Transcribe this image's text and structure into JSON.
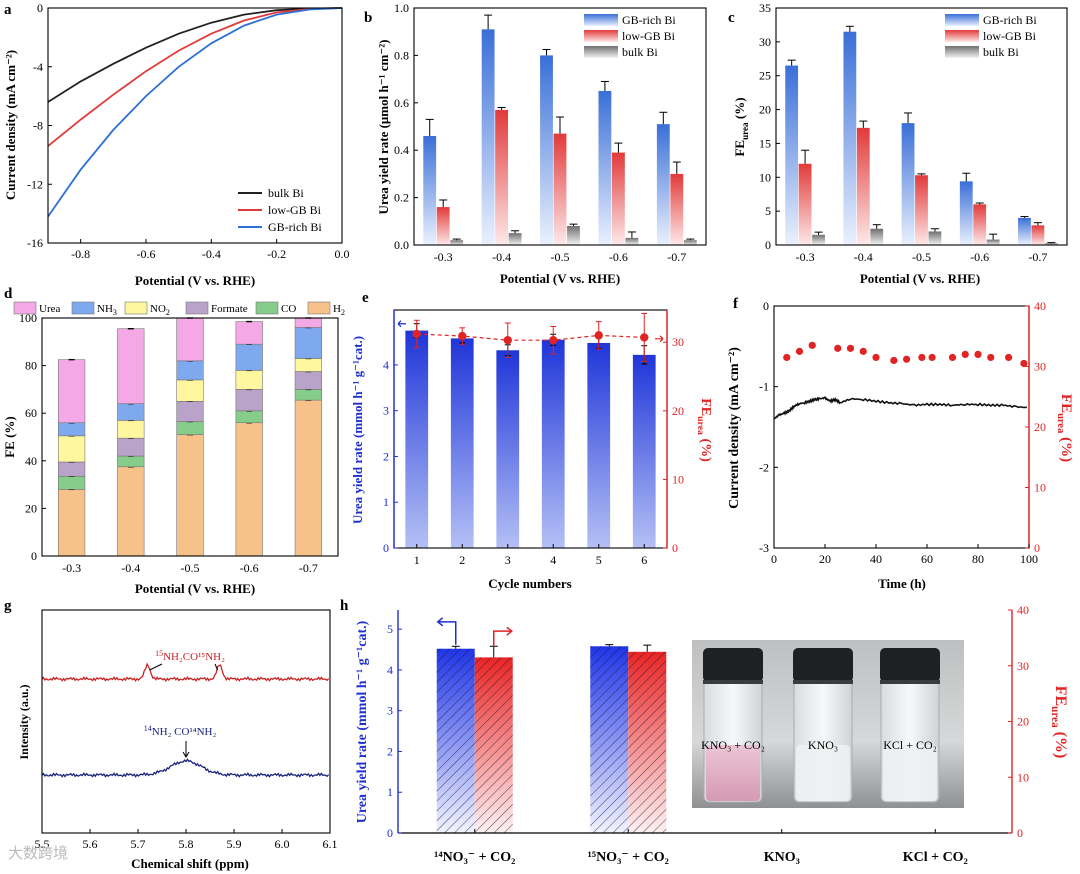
{
  "watermark": "大数跨境",
  "colors": {
    "blue": "#3a6fd8",
    "red": "#e23a3a",
    "gray": "#8a8a8a",
    "navy": "#1a237e",
    "black": "#222",
    "pink": "#f4a9e6",
    "lightblue": "#7ea9ee",
    "yellow": "#fff6a0",
    "mauve": "#b9a3c8",
    "green": "#86cc8a",
    "orange": "#f6c28a"
  },
  "panels": {
    "a": "a",
    "b": "b",
    "c": "c",
    "d": "d",
    "e": "e",
    "f": "f",
    "g": "g",
    "h": "h"
  },
  "a": {
    "ylabel": "Current density (mA cm⁻²)",
    "xlabel": "Potential (V vs. RHE)",
    "xlim": [
      -0.9,
      0.0
    ],
    "ylim": [
      -16,
      0
    ],
    "xticks": [
      "-0.8",
      "-0.6",
      "-0.4",
      "-0.2",
      "0.0"
    ],
    "xtickvals": [
      -0.8,
      -0.6,
      -0.4,
      -0.2,
      0.0
    ],
    "yticks": [
      "0",
      "-4",
      "-8",
      "-12",
      "-16"
    ],
    "ytickvals": [
      0,
      -4,
      -8,
      -12,
      -16
    ],
    "series": [
      {
        "name": "bulk Bi",
        "color": "#222",
        "points": [
          [
            -0.9,
            -6.4
          ],
          [
            -0.8,
            -5.0
          ],
          [
            -0.7,
            -3.8
          ],
          [
            -0.6,
            -2.7
          ],
          [
            -0.5,
            -1.75
          ],
          [
            -0.4,
            -1.0
          ],
          [
            -0.3,
            -0.45
          ],
          [
            -0.2,
            -0.15
          ],
          [
            -0.1,
            -0.04
          ],
          [
            0.0,
            0.0
          ]
        ]
      },
      {
        "name": "low-GB Bi",
        "color": "#e23a3a",
        "points": [
          [
            -0.9,
            -9.4
          ],
          [
            -0.8,
            -7.6
          ],
          [
            -0.7,
            -5.9
          ],
          [
            -0.6,
            -4.3
          ],
          [
            -0.5,
            -2.9
          ],
          [
            -0.4,
            -1.75
          ],
          [
            -0.3,
            -0.85
          ],
          [
            -0.2,
            -0.3
          ],
          [
            -0.1,
            -0.07
          ],
          [
            0.0,
            0.0
          ]
        ]
      },
      {
        "name": "GB-rich Bi",
        "color": "#2d6fd6",
        "points": [
          [
            -0.9,
            -14.2
          ],
          [
            -0.8,
            -11.0
          ],
          [
            -0.7,
            -8.3
          ],
          [
            -0.6,
            -6.0
          ],
          [
            -0.5,
            -4.0
          ],
          [
            -0.4,
            -2.4
          ],
          [
            -0.3,
            -1.2
          ],
          [
            -0.2,
            -0.45
          ],
          [
            -0.1,
            -0.1
          ],
          [
            0.0,
            0.0
          ]
        ]
      }
    ]
  },
  "b": {
    "ylabel": "Urea yield rate (μmol h⁻¹ cm⁻²)",
    "xlabel": "Potential (V vs. RHE)",
    "ylim": [
      0,
      1.0
    ],
    "yticks": [
      "0.0",
      "0.2",
      "0.4",
      "0.6",
      "0.8",
      "1.0"
    ],
    "ytickvals": [
      0,
      0.2,
      0.4,
      0.6,
      0.8,
      1.0
    ],
    "categories": [
      "-0.3",
      "-0.4",
      "-0.5",
      "-0.6",
      "-0.7"
    ],
    "series": [
      {
        "name": "GB-rich Bi",
        "values": [
          0.46,
          0.91,
          0.8,
          0.65,
          0.51
        ],
        "errors": [
          0.07,
          0.06,
          0.025,
          0.04,
          0.05
        ]
      },
      {
        "name": "low-GB Bi",
        "values": [
          0.16,
          0.57,
          0.47,
          0.39,
          0.3
        ],
        "errors": [
          0.03,
          0.01,
          0.07,
          0.04,
          0.05
        ]
      },
      {
        "name": "bulk Bi",
        "values": [
          0.02,
          0.05,
          0.08,
          0.03,
          0.02
        ],
        "errors": [
          0.005,
          0.01,
          0.008,
          0.025,
          0.005
        ]
      }
    ]
  },
  "c": {
    "ylabel": "FE",
    "ylabel_sub": "urea",
    "ylabel_unit": " (%)",
    "xlabel": "Potential (V vs. RHE)",
    "ylim": [
      0,
      35
    ],
    "yticks": [
      "0",
      "5",
      "10",
      "15",
      "20",
      "25",
      "30",
      "35"
    ],
    "ytickvals": [
      0,
      5,
      10,
      15,
      20,
      25,
      30,
      35
    ],
    "categories": [
      "-0.3",
      "-0.4",
      "-0.5",
      "-0.6",
      "-0.7"
    ],
    "series": [
      {
        "name": "GB-rich Bi",
        "values": [
          26.5,
          31.5,
          18.0,
          9.4,
          4.0
        ],
        "errors": [
          0.8,
          0.8,
          1.5,
          1.2,
          0.2
        ]
      },
      {
        "name": "low-GB Bi",
        "values": [
          12.0,
          17.3,
          10.3,
          6.0,
          2.9
        ],
        "errors": [
          2.0,
          1.0,
          0.2,
          0.2,
          0.4
        ]
      },
      {
        "name": "bulk Bi",
        "values": [
          1.5,
          2.4,
          2.0,
          0.8,
          0.25
        ],
        "errors": [
          0.4,
          0.6,
          0.4,
          0.8,
          0.1
        ]
      }
    ]
  },
  "d": {
    "ylabel": "FE (%)",
    "xlabel": "Potential (V vs. RHE)",
    "ylim": [
      0,
      100
    ],
    "yticks": [
      "0",
      "20",
      "40",
      "60",
      "80",
      "100"
    ],
    "ytickvals": [
      0,
      20,
      40,
      60,
      80,
      100
    ],
    "categories": [
      "-0.3",
      "-0.4",
      "-0.5",
      "-0.6",
      "-0.7"
    ],
    "legend": [
      {
        "label": "Urea",
        "color": "#f4a9e6"
      },
      {
        "label": "NH",
        "sub": "3",
        "color": "#7ea9ee"
      },
      {
        "label": "NO",
        "sub": "2",
        "color": "#fff6a0"
      },
      {
        "label": "Formate",
        "color": "#b9a3c8"
      },
      {
        "label": "CO",
        "color": "#86cc8a"
      },
      {
        "label": "H",
        "sub": "2",
        "color": "#f6c28a"
      }
    ],
    "stacks": {
      "H2": [
        28,
        37.5,
        51,
        56,
        65.5
      ],
      "CO": [
        5.5,
        4.5,
        5.5,
        5,
        4.5
      ],
      "Formate": [
        6,
        7.5,
        8.5,
        9,
        7.5
      ],
      "NO2": [
        11,
        7.5,
        9,
        8,
        5.5
      ],
      "NH3": [
        5.5,
        7,
        8,
        11,
        13
      ],
      "Urea": [
        26.5,
        31.5,
        18,
        9.5,
        4
      ]
    },
    "order": [
      "H2",
      "CO",
      "Formate",
      "NO2",
      "NH3",
      "Urea"
    ],
    "stack_colors": {
      "H2": "#f6c28a",
      "CO": "#86cc8a",
      "Formate": "#b9a3c8",
      "NO2": "#fff6a0",
      "NH3": "#7ea9ee",
      "Urea": "#f4a9e6"
    }
  },
  "e": {
    "ylabel": "Urea yield rate (mmol h⁻¹ g⁻¹cat.)",
    "y2label": "FE",
    "y2label_sub": "urea",
    "y2label_unit": " (%)",
    "xlabel": "Cycle numbers",
    "categories": [
      "1",
      "2",
      "3",
      "4",
      "5",
      "6"
    ],
    "ylim": [
      0,
      5.2
    ],
    "yticks": [
      "0",
      "1",
      "2",
      "3",
      "4"
    ],
    "ytickvals": [
      0,
      1,
      2,
      3,
      4
    ],
    "y2lim": [
      0,
      34.7
    ],
    "y2ticks": [
      "0",
      "10",
      "20",
      "30"
    ],
    "y2tickvals": [
      0,
      10,
      20,
      30
    ],
    "values": [
      4.75,
      4.58,
      4.32,
      4.55,
      4.48,
      4.22
    ],
    "errors": [
      0.15,
      0.1,
      0.12,
      0.12,
      0.12,
      0.2
    ],
    "fe": [
      31.2,
      30.9,
      30.3,
      30.3,
      31.0,
      30.7
    ],
    "fe_errors": [
      2.0,
      1.2,
      2.5,
      2.0,
      2.0,
      3.5
    ]
  },
  "f": {
    "ylabel": "Current density (mA cm⁻²)",
    "y2label": "FE",
    "y2label_sub": "urea",
    "y2label_unit": " (%)",
    "xlabel": "Time (h)",
    "xlim": [
      0,
      100
    ],
    "xticks": [
      "0",
      "20",
      "40",
      "60",
      "80",
      "100"
    ],
    "xtickvals": [
      0,
      20,
      40,
      60,
      80,
      100
    ],
    "ylim": [
      -3,
      0
    ],
    "yticks": [
      "0",
      "-1",
      "-2",
      "-3"
    ],
    "ytickvals": [
      0,
      -1,
      -2,
      -3
    ],
    "y2lim": [
      0,
      40
    ],
    "y2ticks": [
      "0",
      "10",
      "20",
      "30",
      "40"
    ],
    "y2tickvals": [
      0,
      10,
      20,
      30,
      40
    ],
    "current": [
      [
        0,
        -1.4
      ],
      [
        2,
        -1.35
      ],
      [
        4,
        -1.33
      ],
      [
        6,
        -1.3
      ],
      [
        8,
        -1.24
      ],
      [
        10,
        -1.21
      ],
      [
        12,
        -1.2
      ],
      [
        14,
        -1.18
      ],
      [
        16,
        -1.16
      ],
      [
        18,
        -1.15
      ],
      [
        20,
        -1.14
      ],
      [
        22,
        -1.18
      ],
      [
        24,
        -1.16
      ],
      [
        26,
        -1.2
      ],
      [
        30,
        -1.15
      ],
      [
        35,
        -1.16
      ],
      [
        40,
        -1.18
      ],
      [
        45,
        -1.2
      ],
      [
        50,
        -1.21
      ],
      [
        55,
        -1.23
      ],
      [
        60,
        -1.22
      ],
      [
        65,
        -1.22
      ],
      [
        70,
        -1.23
      ],
      [
        75,
        -1.22
      ],
      [
        80,
        -1.22
      ],
      [
        85,
        -1.23
      ],
      [
        90,
        -1.23
      ],
      [
        95,
        -1.25
      ],
      [
        100,
        -1.26
      ]
    ],
    "fe": [
      [
        5,
        31.5
      ],
      [
        10,
        32.5
      ],
      [
        15,
        33.5
      ],
      [
        25,
        33
      ],
      [
        30,
        33
      ],
      [
        35,
        32.5
      ],
      [
        40,
        31.5
      ],
      [
        47,
        31
      ],
      [
        52,
        31.2
      ],
      [
        58,
        31.5
      ],
      [
        62,
        31.5
      ],
      [
        70,
        31.5
      ],
      [
        75,
        32
      ],
      [
        80,
        32
      ],
      [
        85,
        31.5
      ],
      [
        92,
        31.5
      ],
      [
        98,
        30.5
      ]
    ]
  },
  "g": {
    "ylabel": "Intensity (a.u.)",
    "xlabel": "Chemical shift (ppm)",
    "xlim": [
      6.1,
      5.5
    ],
    "xticks": [
      "5.5",
      "5.6",
      "5.7",
      "5.8",
      "5.9",
      "6.0",
      "6.1"
    ],
    "xtickvals": [
      5.5,
      5.6,
      5.7,
      5.8,
      5.9,
      6.0,
      6.1
    ],
    "top_label": "NH₂CO¹⁵NH₂",
    "top_label_pre": "15",
    "bottom_label": "NH₂ CO¹⁴NH₂",
    "bottom_label_pre": "14",
    "top_peaks": [
      5.72,
      5.87
    ],
    "bottom_peak": 5.8
  },
  "h": {
    "ylabel": "Urea yield rate (mmol h⁻¹ g⁻¹cat.)",
    "y2label": "FE",
    "y2label_sub": "urea",
    "y2label_unit": " (%)",
    "ylim": [
      0,
      5.47
    ],
    "yticks": [
      "0",
      "1",
      "2",
      "3",
      "4",
      "5"
    ],
    "ytickvals": [
      0,
      1,
      2,
      3,
      4,
      5
    ],
    "y2lim": [
      0,
      40
    ],
    "y2ticks": [
      "0",
      "10",
      "20",
      "30",
      "40"
    ],
    "y2tickvals": [
      0,
      10,
      20,
      30,
      40
    ],
    "categories": [
      "¹⁴NO₃⁻ + CO₂",
      "¹⁵NO₃⁻ + CO₂",
      "KNO₃",
      "KCl + CO₂"
    ],
    "yield": [
      4.52,
      4.58,
      0,
      0
    ],
    "yield_err": [
      0.06,
      0.04,
      0,
      0
    ],
    "fe": [
      31.5,
      32.5,
      0,
      0
    ],
    "fe_err": [
      2.0,
      1.2,
      0,
      0
    ],
    "photo_labels": [
      "KNO₃ + CO₂",
      "KNO₃",
      "KCl + CO₂"
    ]
  }
}
